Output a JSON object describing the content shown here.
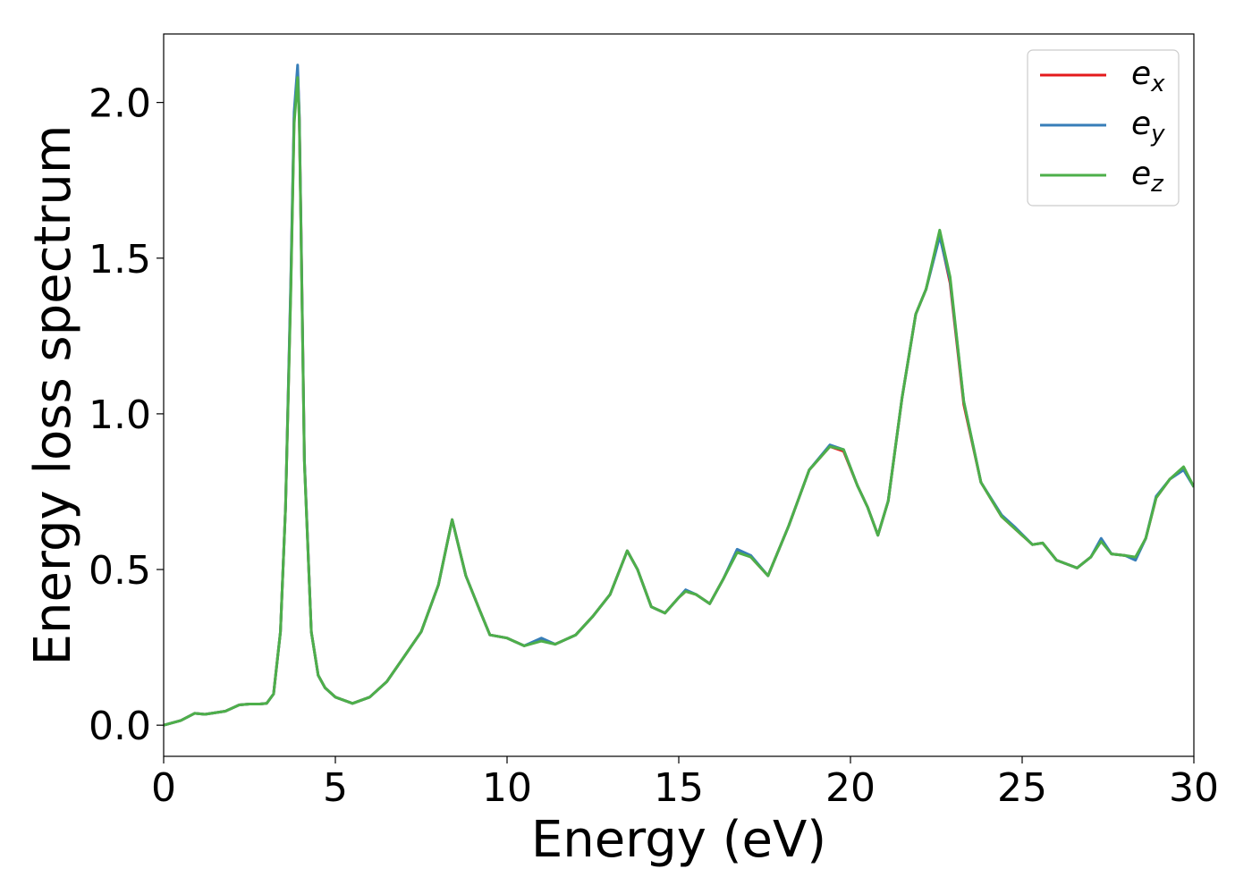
{
  "chart_data": {
    "type": "line",
    "title": "",
    "xlabel": "Energy (eV)",
    "ylabel": "Energy loss spectrum",
    "xlim": [
      0,
      30
    ],
    "ylim": [
      -0.1,
      2.22
    ],
    "xticks": [
      0,
      5,
      10,
      15,
      20,
      25,
      30
    ],
    "xtick_labels": [
      "0",
      "5",
      "10",
      "15",
      "20",
      "25",
      "30"
    ],
    "yticks": [
      0.0,
      0.5,
      1.0,
      1.5,
      2.0
    ],
    "ytick_labels": [
      "0.0",
      "0.5",
      "1.0",
      "1.5",
      "2.0"
    ],
    "grid": false,
    "legend_position": "top-right",
    "x": [
      0,
      0.5,
      0.9,
      1.2,
      1.8,
      2.2,
      2.5,
      2.8,
      3.0,
      3.2,
      3.4,
      3.55,
      3.7,
      3.8,
      3.9,
      3.95,
      4.0,
      4.1,
      4.3,
      4.5,
      4.7,
      5.0,
      5.5,
      6.0,
      6.5,
      7.0,
      7.5,
      8.0,
      8.4,
      8.8,
      9.2,
      9.5,
      10.0,
      10.5,
      11.0,
      11.4,
      12.0,
      12.5,
      13.0,
      13.5,
      13.8,
      14.2,
      14.6,
      15.0,
      15.2,
      15.5,
      15.9,
      16.3,
      16.7,
      17.1,
      17.6,
      18.2,
      18.8,
      19.4,
      19.8,
      20.2,
      20.5,
      20.8,
      21.1,
      21.5,
      21.9,
      22.2,
      22.6,
      22.9,
      23.3,
      23.8,
      24.4,
      24.8,
      25.3,
      25.6,
      26.0,
      26.6,
      27.0,
      27.3,
      27.6,
      28.0,
      28.3,
      28.6,
      28.9,
      29.3,
      29.7,
      30.0
    ],
    "series": [
      {
        "name": "e_x",
        "color": "#e41a1c",
        "values": [
          0.0,
          0.015,
          0.038,
          0.035,
          0.045,
          0.065,
          0.068,
          0.068,
          0.07,
          0.1,
          0.3,
          0.7,
          1.4,
          1.95,
          2.1,
          1.95,
          1.6,
          0.85,
          0.3,
          0.16,
          0.12,
          0.09,
          0.07,
          0.09,
          0.14,
          0.22,
          0.3,
          0.45,
          0.66,
          0.48,
          0.37,
          0.29,
          0.28,
          0.255,
          0.275,
          0.26,
          0.29,
          0.35,
          0.42,
          0.56,
          0.5,
          0.38,
          0.36,
          0.41,
          0.43,
          0.42,
          0.39,
          0.47,
          0.56,
          0.54,
          0.48,
          0.64,
          0.82,
          0.895,
          0.88,
          0.77,
          0.7,
          0.61,
          0.72,
          1.05,
          1.32,
          1.4,
          1.575,
          1.42,
          1.03,
          0.78,
          0.67,
          0.63,
          0.58,
          0.585,
          0.53,
          0.505,
          0.54,
          0.595,
          0.55,
          0.545,
          0.535,
          0.6,
          0.73,
          0.79,
          0.825,
          0.765
        ]
      },
      {
        "name": "e_y",
        "color": "#377eb8",
        "values": [
          0.0,
          0.015,
          0.038,
          0.035,
          0.045,
          0.065,
          0.068,
          0.068,
          0.07,
          0.1,
          0.3,
          0.7,
          1.42,
          1.97,
          2.12,
          1.96,
          1.6,
          0.85,
          0.3,
          0.16,
          0.12,
          0.09,
          0.07,
          0.09,
          0.14,
          0.22,
          0.3,
          0.45,
          0.66,
          0.48,
          0.37,
          0.29,
          0.28,
          0.255,
          0.28,
          0.26,
          0.29,
          0.35,
          0.42,
          0.56,
          0.5,
          0.38,
          0.36,
          0.41,
          0.435,
          0.42,
          0.39,
          0.47,
          0.565,
          0.545,
          0.48,
          0.64,
          0.82,
          0.9,
          0.885,
          0.77,
          0.7,
          0.61,
          0.72,
          1.05,
          1.32,
          1.4,
          1.57,
          1.43,
          1.04,
          0.78,
          0.675,
          0.635,
          0.58,
          0.585,
          0.53,
          0.505,
          0.54,
          0.6,
          0.55,
          0.545,
          0.53,
          0.6,
          0.735,
          0.79,
          0.82,
          0.765
        ]
      },
      {
        "name": "e_z",
        "color": "#4daf4a",
        "values": [
          0.0,
          0.015,
          0.038,
          0.035,
          0.045,
          0.065,
          0.068,
          0.068,
          0.07,
          0.1,
          0.3,
          0.7,
          1.38,
          1.93,
          2.08,
          1.94,
          1.58,
          0.84,
          0.3,
          0.16,
          0.12,
          0.09,
          0.07,
          0.09,
          0.14,
          0.22,
          0.3,
          0.45,
          0.66,
          0.48,
          0.37,
          0.29,
          0.28,
          0.255,
          0.27,
          0.26,
          0.29,
          0.35,
          0.42,
          0.56,
          0.5,
          0.38,
          0.36,
          0.41,
          0.43,
          0.42,
          0.39,
          0.47,
          0.555,
          0.54,
          0.48,
          0.64,
          0.82,
          0.895,
          0.885,
          0.77,
          0.7,
          0.61,
          0.72,
          1.05,
          1.32,
          1.4,
          1.59,
          1.44,
          1.04,
          0.78,
          0.67,
          0.63,
          0.58,
          0.585,
          0.53,
          0.505,
          0.54,
          0.59,
          0.55,
          0.545,
          0.54,
          0.6,
          0.73,
          0.79,
          0.83,
          0.765
        ]
      }
    ]
  }
}
